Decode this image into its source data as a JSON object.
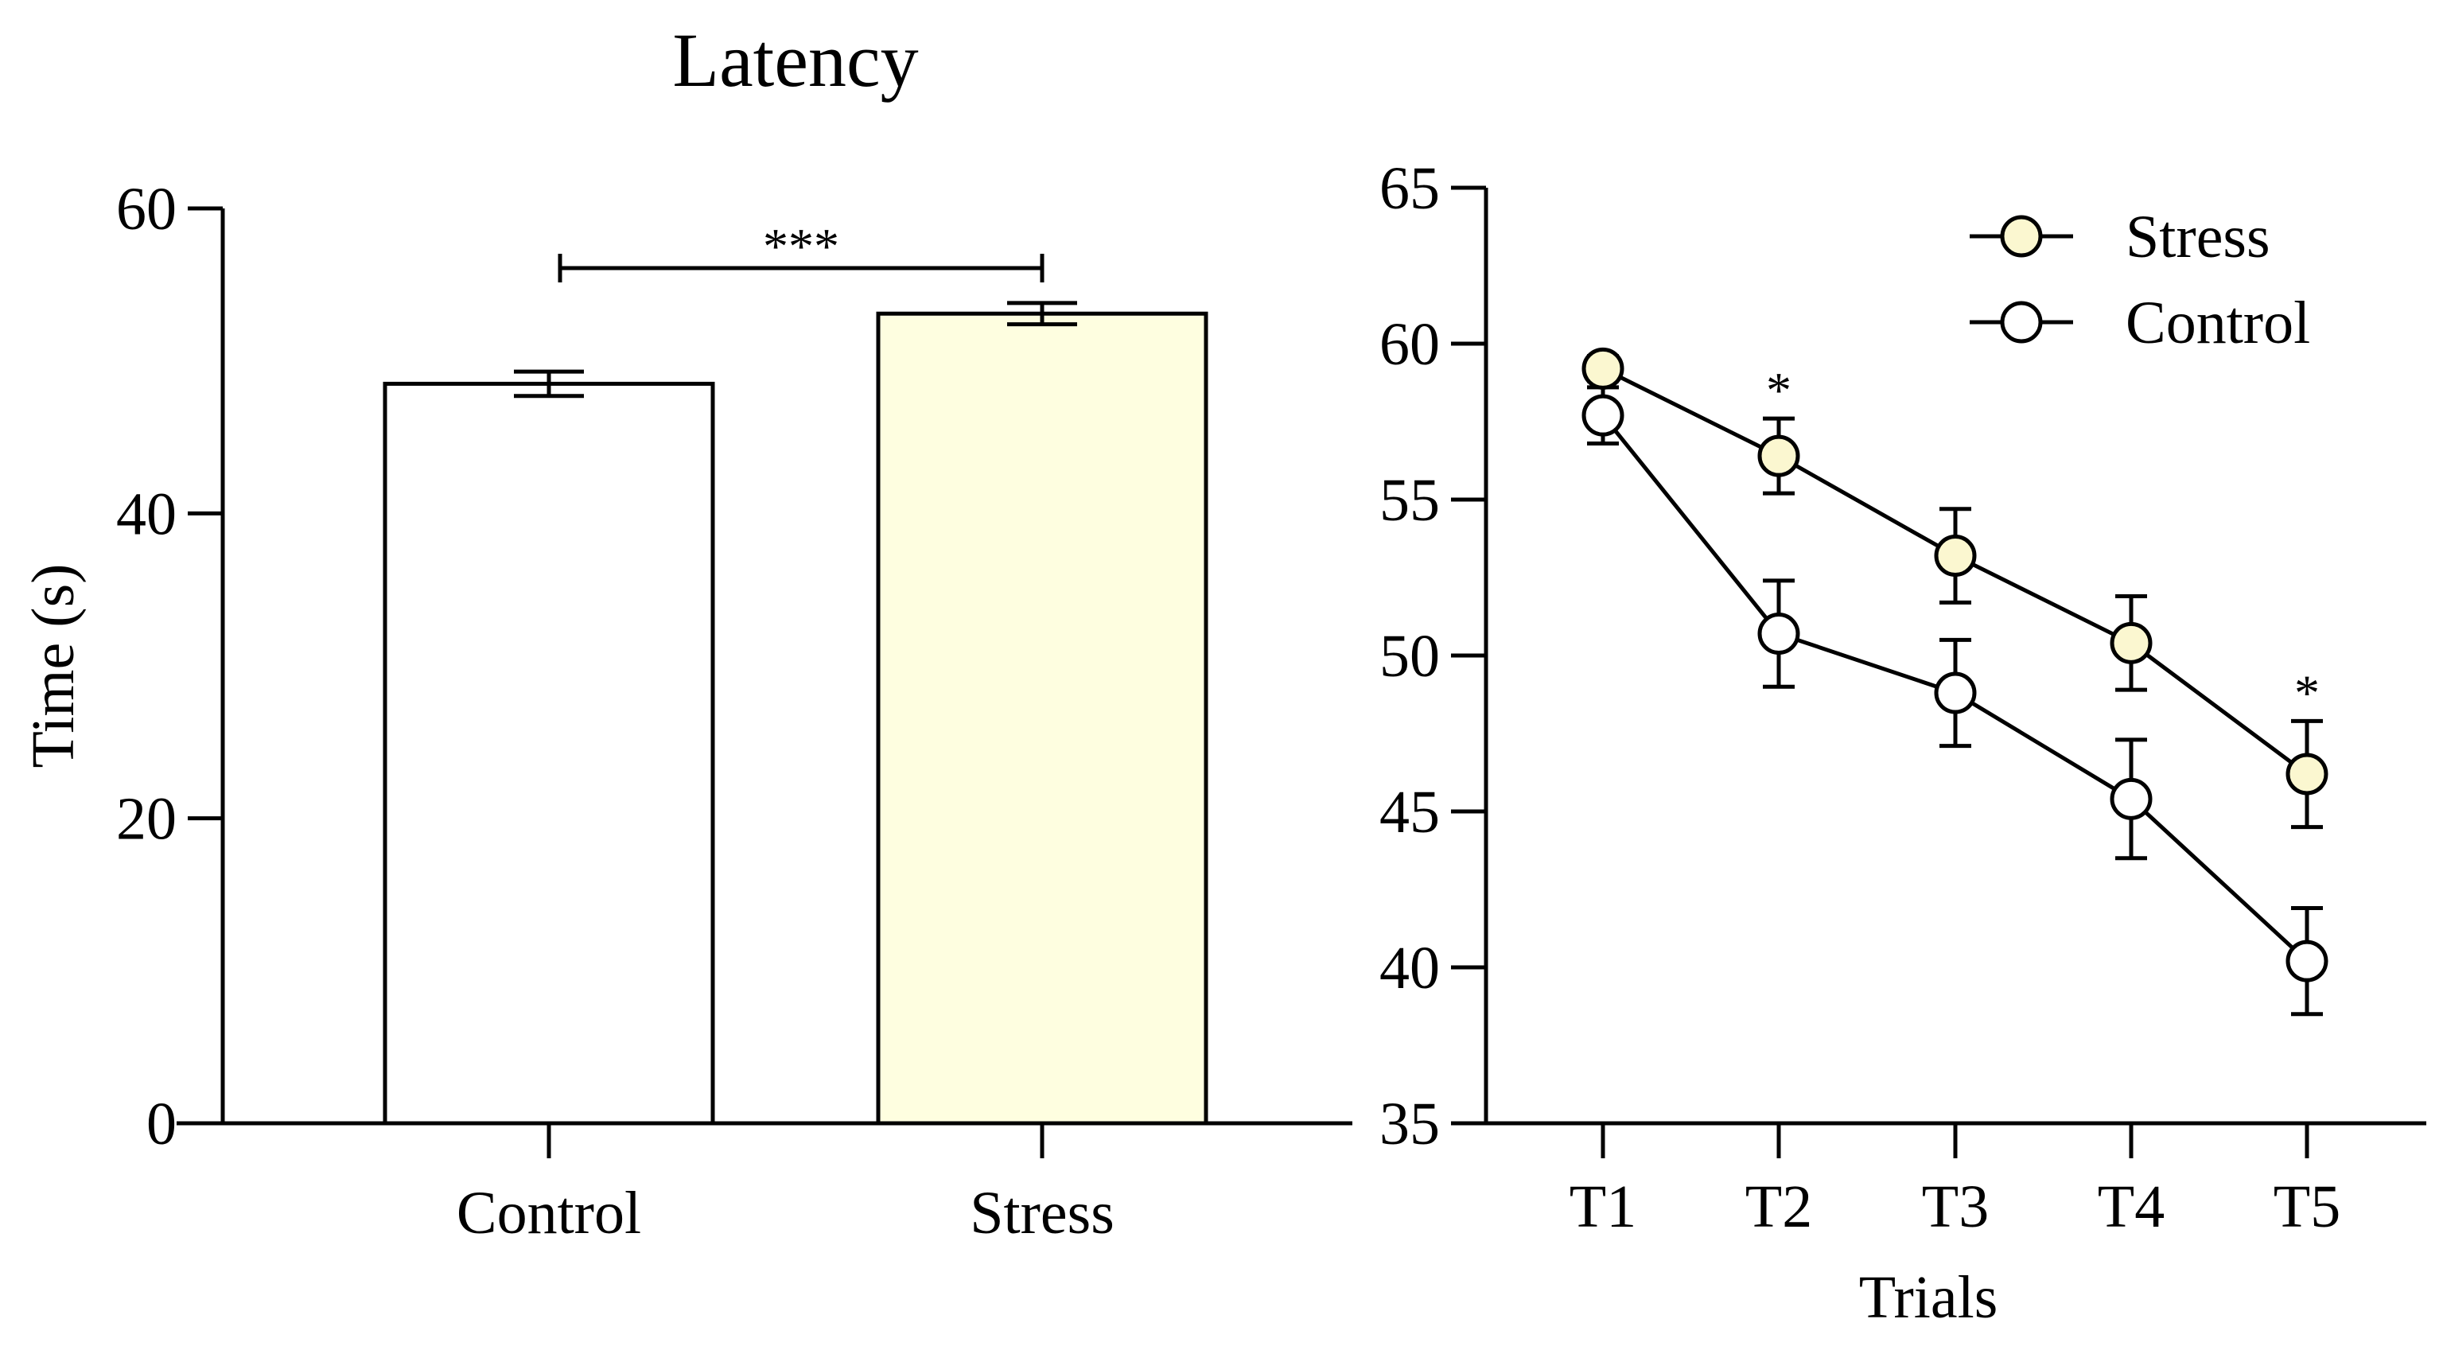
{
  "figure_title": "Latency",
  "chart_data": [
    {
      "type": "bar",
      "title": "Latency",
      "xlabel": "",
      "ylabel": "Time (s)",
      "ylim": [
        0,
        60
      ],
      "yticks": [
        0,
        20,
        40,
        60
      ],
      "categories": [
        "Control",
        "Stress"
      ],
      "values": [
        48.5,
        53.1
      ],
      "errors": [
        0.8,
        0.7
      ],
      "colors": [
        "#ffffff",
        "#fefee0"
      ],
      "significance": {
        "between": [
          "Control",
          "Stress"
        ],
        "label": "***"
      }
    },
    {
      "type": "line",
      "xlabel": "Trials",
      "ylabel": "",
      "ylim": [
        35,
        65
      ],
      "yticks": [
        35,
        40,
        45,
        50,
        55,
        60,
        65
      ],
      "x": [
        "T1",
        "T2",
        "T3",
        "T4",
        "T5"
      ],
      "legend_position": "top-right",
      "series": [
        {
          "name": "Stress",
          "values": [
            59.2,
            56.4,
            53.2,
            50.4,
            46.2
          ],
          "errors": [
            0.4,
            1.2,
            1.5,
            1.5,
            1.7
          ],
          "color": "#fbf7d0"
        },
        {
          "name": "Control",
          "values": [
            57.7,
            50.7,
            48.8,
            45.4,
            40.2
          ],
          "errors": [
            0.9,
            1.7,
            1.7,
            1.9,
            1.7
          ],
          "color": "#ffffff"
        }
      ],
      "annotations": [
        {
          "x": "T2",
          "label": "*"
        },
        {
          "x": "T5",
          "label": "*"
        }
      ]
    }
  ]
}
